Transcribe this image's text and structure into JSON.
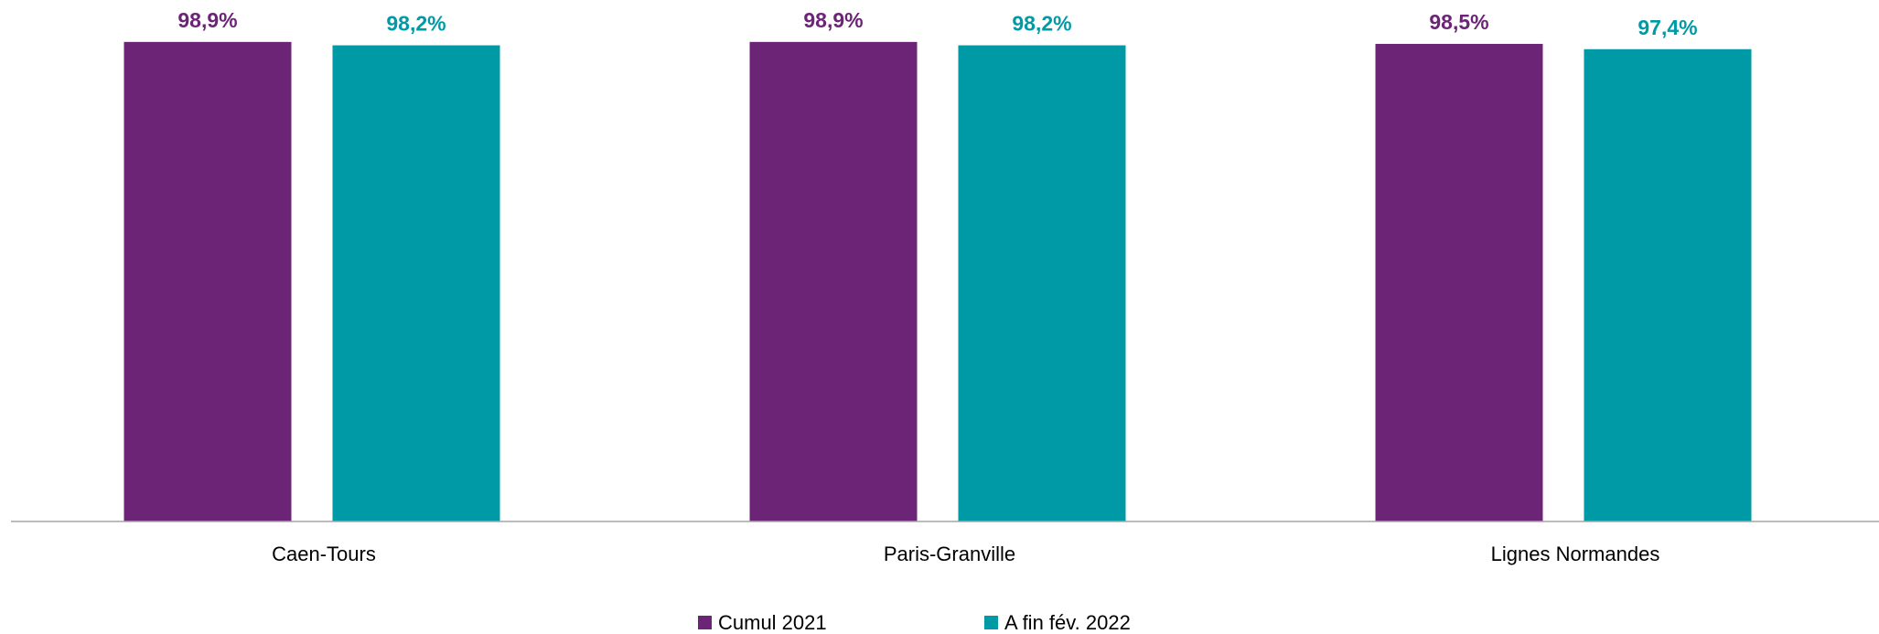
{
  "chart_data": {
    "type": "bar",
    "categories": [
      "Caen-Tours",
      "Paris-Granville",
      "Lignes Normandes"
    ],
    "series": [
      {
        "name": "Cumul 2021",
        "color": "#6c2576",
        "values": [
          98.9,
          98.9,
          98.5
        ],
        "labels": [
          "98,9%",
          "98,9%",
          "98,5%"
        ]
      },
      {
        "name": "A fin fév. 2022",
        "color": "#009aa6",
        "values": [
          98.2,
          98.2,
          97.4
        ],
        "labels": [
          "98,2%",
          "98,2%",
          "97,4%"
        ]
      }
    ],
    "ylim": [
      0,
      100
    ],
    "grid": false,
    "legend_position": "bottom"
  }
}
